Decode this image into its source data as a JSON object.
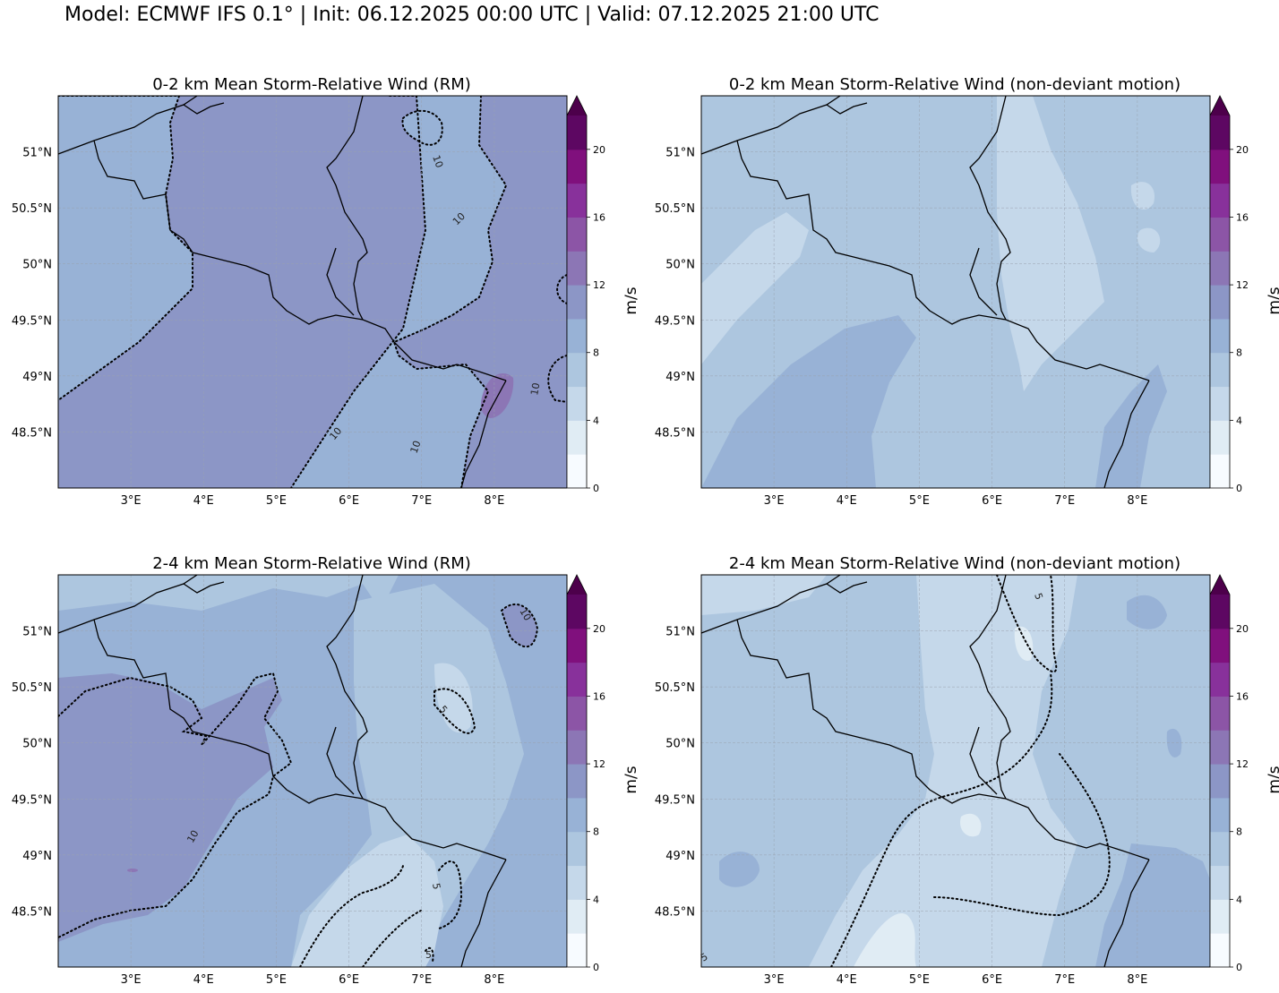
{
  "figure": {
    "suptitle": "Model: ECMWF IFS 0.1° | Init: 06.12.2025 00:00 UTC | Valid: 07.12.2025 21:00 UTC"
  },
  "chart_data": [
    {
      "type": "heatmap",
      "title": "0-2 km Mean Storm-Relative Wind (RM)",
      "colorbar_label": "m/s",
      "x_ticks": [
        "3°E",
        "4°E",
        "5°E",
        "6°E",
        "7°E",
        "8°E"
      ],
      "y_ticks": [
        "51°N",
        "50.5°N",
        "50°N",
        "49.5°N",
        "49°N",
        "48.5°N"
      ],
      "lon_range": [
        2,
        9
      ],
      "lat_range": [
        48,
        51.5
      ],
      "colorbar_ticks": [
        0,
        4,
        8,
        12,
        16,
        20
      ],
      "colorbar_range": [
        0,
        22
      ],
      "contour_labels": [
        "10",
        "10",
        "10",
        "10",
        "10"
      ],
      "dominant_values_ms": [
        10,
        12
      ]
    },
    {
      "type": "heatmap",
      "title": "0-2 km Mean Storm-Relative Wind (non-deviant motion)",
      "colorbar_label": "m/s",
      "x_ticks": [
        "3°E",
        "4°E",
        "5°E",
        "6°E",
        "7°E",
        "8°E"
      ],
      "y_ticks": [
        "51°N",
        "50.5°N",
        "50°N",
        "49.5°N",
        "49°N",
        "48.5°N"
      ],
      "lon_range": [
        2,
        9
      ],
      "lat_range": [
        48,
        51.5
      ],
      "colorbar_ticks": [
        0,
        4,
        8,
        12,
        16,
        20
      ],
      "colorbar_range": [
        0,
        22
      ],
      "contour_labels": [],
      "dominant_values_ms": [
        6,
        8
      ]
    },
    {
      "type": "heatmap",
      "title": "2-4 km Mean Storm-Relative Wind (RM)",
      "colorbar_label": "m/s",
      "x_ticks": [
        "3°E",
        "4°E",
        "5°E",
        "6°E",
        "7°E",
        "8°E"
      ],
      "y_ticks": [
        "51°N",
        "50.5°N",
        "50°N",
        "49.5°N",
        "49°N",
        "48.5°N"
      ],
      "lon_range": [
        2,
        9
      ],
      "lat_range": [
        48,
        51.5
      ],
      "colorbar_ticks": [
        0,
        4,
        8,
        12,
        16,
        20
      ],
      "colorbar_range": [
        0,
        22
      ],
      "contour_labels": [
        "10",
        "5",
        "10",
        "5",
        "5"
      ],
      "dominant_values_ms": [
        6,
        8,
        10
      ]
    },
    {
      "type": "heatmap",
      "title": "2-4 km Mean Storm-Relative Wind (non-deviant motion)",
      "colorbar_label": "m/s",
      "x_ticks": [
        "3°E",
        "4°E",
        "5°E",
        "6°E",
        "7°E",
        "8°E"
      ],
      "y_ticks": [
        "51°N",
        "50.5°N",
        "50°N",
        "49.5°N",
        "49°N",
        "48.5°N"
      ],
      "lon_range": [
        2,
        9
      ],
      "lat_range": [
        48,
        51.5
      ],
      "colorbar_ticks": [
        0,
        4,
        8,
        12,
        16,
        20
      ],
      "colorbar_range": [
        0,
        22
      ],
      "contour_labels": [
        "5",
        "5"
      ],
      "dominant_values_ms": [
        4,
        6,
        8
      ]
    }
  ],
  "colors": {
    "levels": [
      "#f7fbff",
      "#e0ecf4",
      "#c5d8ea",
      "#adc6df",
      "#98b2d6",
      "#8c96c6",
      "#8c76b5",
      "#8c55a6",
      "#88319b",
      "#80107d",
      "#5d0762",
      "#4d004b"
    ],
    "extend_max": "#4d004b"
  }
}
